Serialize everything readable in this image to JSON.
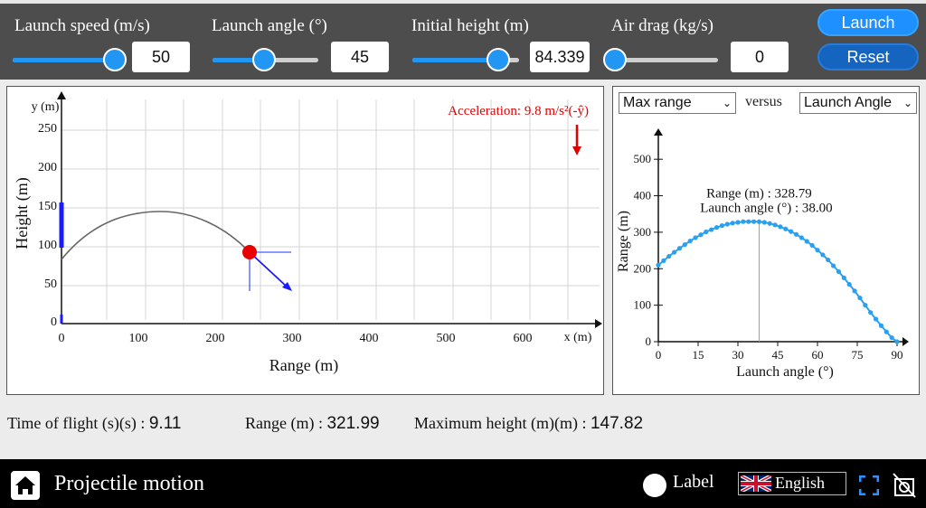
{
  "controls": [
    {
      "label": "Launch speed (m/s)",
      "value": "50",
      "fraction": 0.5
    },
    {
      "label": "Launch angle (°)",
      "value": "45",
      "fraction": 0.5
    },
    {
      "label": "Initial height (m)",
      "value": "84.339",
      "fraction": 0.84
    },
    {
      "label": "Air drag (kg/s)",
      "value": "0",
      "fraction": 0.0
    }
  ],
  "buttons": {
    "launch": "Launch",
    "reset": "Reset"
  },
  "main_plot": {
    "ylabel": "Height (m)",
    "xlabel": "Range (m)",
    "y_axis_name": "y (m)",
    "x_axis_name": "x (m)",
    "xticks": [
      "0",
      "100",
      "200",
      "300",
      "400",
      "500",
      "600"
    ],
    "yticks": [
      "0",
      "50",
      "100",
      "150",
      "200",
      "250"
    ],
    "acceleration_label": "Acceleration: 9.8 m/s²(-ŷ)",
    "accent": "#e00000"
  },
  "side_plot": {
    "selector_y": "Max range",
    "versus": "versus",
    "selector_x": "Launch Angle",
    "ylabel": "Range (m)",
    "xlabel": "Launch angle (°)",
    "xticks": [
      "0",
      "15",
      "30",
      "45",
      "60",
      "75",
      "90"
    ],
    "yticks": [
      "0",
      "100",
      "200",
      "300",
      "400",
      "500"
    ],
    "readout_range": "Range (m) : 328.79",
    "readout_angle": "Launch angle (°) : 38.00"
  },
  "chart_data": {
    "type": "scatter",
    "x": [
      0,
      2,
      4,
      6,
      8,
      10,
      12,
      14,
      16,
      18,
      20,
      22,
      24,
      26,
      28,
      30,
      32,
      34,
      36,
      38,
      40,
      42,
      44,
      46,
      48,
      50,
      52,
      54,
      56,
      58,
      60,
      62,
      64,
      66,
      68,
      70,
      72,
      74,
      76,
      78,
      80,
      82,
      84,
      86,
      88,
      90
    ],
    "y": [
      210,
      222,
      234,
      245,
      256,
      266,
      276,
      285,
      293,
      301,
      307,
      313,
      318,
      322,
      325,
      327,
      329,
      329,
      329,
      328.8,
      327,
      324,
      320,
      315,
      309,
      302,
      294,
      285,
      275,
      264,
      251,
      238,
      224,
      208,
      192,
      175,
      157,
      139,
      120,
      100,
      80,
      62,
      44,
      27,
      11,
      0
    ],
    "xlabel": "Launch angle (°)",
    "ylabel": "Range (m)",
    "xlim": [
      0,
      90
    ],
    "ylim": [
      0,
      550
    ]
  },
  "stats": {
    "time_label": "Time of flight (s)(s) :",
    "time_value": "9.11",
    "range_label": "Range (m) :",
    "range_value": "321.99",
    "height_label": "Maximum height (m)(m) :",
    "height_value": "147.82"
  },
  "footer": {
    "title": "Projectile motion",
    "label_toggle": "Label",
    "language": "English"
  }
}
